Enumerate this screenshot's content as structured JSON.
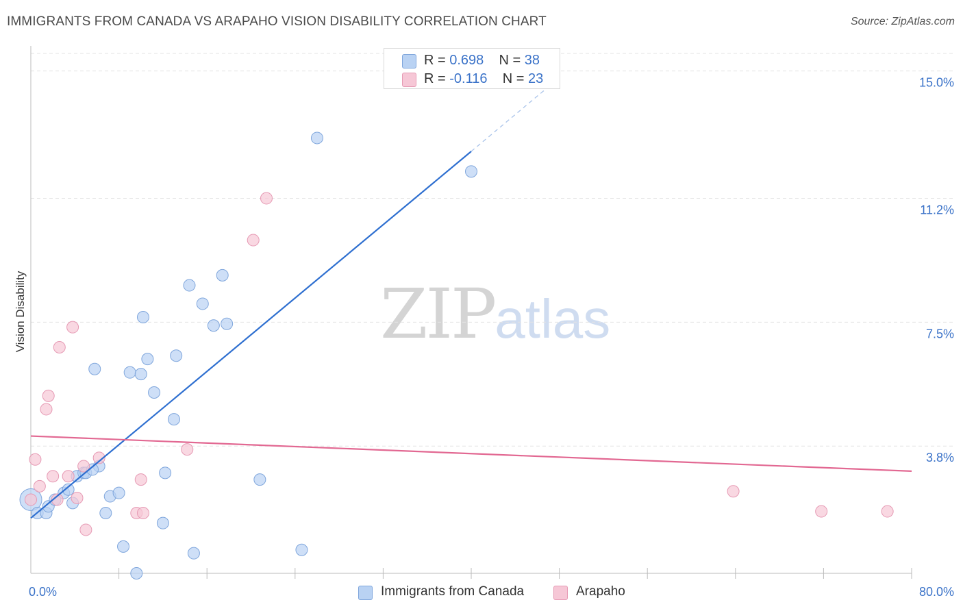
{
  "title": "IMMIGRANTS FROM CANADA VS ARAPAHO VISION DISABILITY CORRELATION CHART",
  "source": "Source: ZipAtlas.com",
  "watermark": {
    "zip": "ZIP",
    "atlas": "atlas"
  },
  "legend": {
    "canada": {
      "r_label": "R =",
      "r_value": "0.698",
      "n_label": "N =",
      "n_value": "38"
    },
    "arapaho": {
      "r_label": "R =",
      "r_value": "-0.116",
      "n_label": "N =",
      "n_value": "23"
    }
  },
  "colors": {
    "canada_fill": "#b9d2f3",
    "canada_stroke": "#7fa6dc",
    "canada_line": "#2e6fd0",
    "arapaho_fill": "#f6c7d6",
    "arapaho_stroke": "#e69ab4",
    "arapaho_line": "#e26892",
    "axis_label": "#3a72c8",
    "grid": "#e3e3e3"
  },
  "chart_data": {
    "type": "scatter",
    "title": "IMMIGRANTS FROM CANADA VS ARAPAHO VISION DISABILITY CORRELATION CHART",
    "xlabel": "",
    "ylabel": "Vision Disability",
    "xlim": [
      0,
      80
    ],
    "ylim": [
      0,
      15.75
    ],
    "x_tick_labels": [
      "0.0%",
      "80.0%"
    ],
    "y_ticks": [
      3.8,
      7.5,
      11.2,
      15.0
    ],
    "y_tick_labels": [
      "3.8%",
      "7.5%",
      "11.2%",
      "15.0%"
    ],
    "grid": "horizontal dashed",
    "legend_position": "top-center",
    "series": [
      {
        "name": "Immigrants from Canada",
        "color": "#b9d2f3",
        "points": [
          [
            0,
            2.2
          ],
          [
            0.6,
            1.8
          ],
          [
            1.4,
            1.8
          ],
          [
            1.6,
            2.0
          ],
          [
            2.2,
            2.2
          ],
          [
            3.0,
            2.4
          ],
          [
            3.4,
            2.5
          ],
          [
            3.8,
            2.1
          ],
          [
            4.2,
            2.9
          ],
          [
            4.8,
            3.0
          ],
          [
            6.2,
            3.2
          ],
          [
            5.0,
            3.0
          ],
          [
            5.6,
            3.1
          ],
          [
            5.8,
            6.1
          ],
          [
            6.8,
            1.8
          ],
          [
            7.2,
            2.3
          ],
          [
            8.0,
            2.4
          ],
          [
            8.4,
            0.8
          ],
          [
            9.0,
            6.0
          ],
          [
            9.6,
            0.0
          ],
          [
            10.0,
            5.95
          ],
          [
            10.2,
            7.65
          ],
          [
            10.6,
            6.4
          ],
          [
            11.2,
            5.4
          ],
          [
            12.0,
            1.5
          ],
          [
            12.2,
            3.0
          ],
          [
            13.0,
            4.6
          ],
          [
            13.2,
            6.5
          ],
          [
            14.4,
            8.6
          ],
          [
            14.8,
            0.6
          ],
          [
            15.6,
            8.05
          ],
          [
            16.6,
            7.4
          ],
          [
            17.4,
            8.9
          ],
          [
            17.8,
            7.45
          ],
          [
            20.8,
            2.8
          ],
          [
            24.6,
            0.7
          ],
          [
            26.0,
            13.0
          ],
          [
            40.0,
            12.0
          ]
        ]
      },
      {
        "name": "Arapaho",
        "color": "#f6c7d6",
        "points": [
          [
            0,
            2.2
          ],
          [
            0.4,
            3.4
          ],
          [
            0.8,
            2.6
          ],
          [
            1.4,
            4.9
          ],
          [
            1.6,
            5.3
          ],
          [
            2.0,
            2.9
          ],
          [
            2.4,
            2.2
          ],
          [
            2.6,
            6.75
          ],
          [
            3.4,
            2.9
          ],
          [
            3.8,
            7.35
          ],
          [
            4.2,
            2.25
          ],
          [
            4.8,
            3.2
          ],
          [
            5.0,
            1.3
          ],
          [
            6.2,
            3.45
          ],
          [
            9.6,
            1.8
          ],
          [
            10.0,
            2.8
          ],
          [
            10.2,
            1.8
          ],
          [
            14.2,
            3.7
          ],
          [
            20.2,
            9.95
          ],
          [
            21.4,
            11.2
          ],
          [
            63.8,
            2.45
          ],
          [
            71.8,
            1.85
          ],
          [
            77.8,
            1.85
          ]
        ]
      }
    ],
    "trend_lines": [
      {
        "series": "Immigrants from Canada",
        "x": [
          0,
          40
        ],
        "y": [
          1.65,
          12.6
        ],
        "dashed_extension_to": [
          48.0,
          14.8
        ]
      },
      {
        "series": "Arapaho",
        "x": [
          0,
          80
        ],
        "y": [
          4.1,
          3.05
        ]
      }
    ]
  },
  "bottom_legend": [
    "Immigrants from Canada",
    "Arapaho"
  ]
}
